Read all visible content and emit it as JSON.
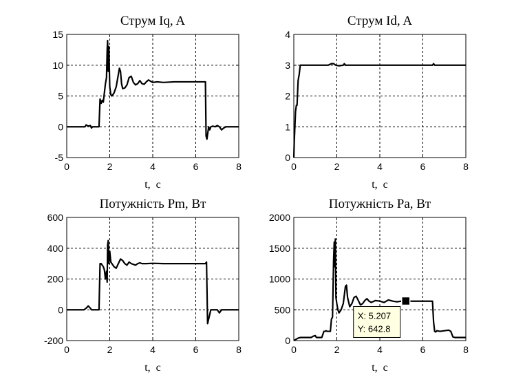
{
  "figure": {
    "background": "#ffffff",
    "line_color": "#000000",
    "grid_color": "#000000"
  },
  "chart_data": [
    {
      "type": "line",
      "title": "Струм Iq, A",
      "xlabel": "t,  c",
      "ylabel": "",
      "xlim": [
        0,
        8
      ],
      "ylim": [
        -5,
        15
      ],
      "xticks": [
        "0",
        "2",
        "4",
        "6",
        "8"
      ],
      "yticks": [
        "-5",
        "0",
        "5",
        "10",
        "15"
      ],
      "grid": true,
      "x": [
        0,
        0.85,
        0.9,
        1.0,
        1.1,
        1.15,
        1.2,
        1.3,
        1.5,
        1.55,
        1.6,
        1.65,
        1.7,
        1.75,
        1.8,
        1.85,
        1.88,
        1.9,
        1.93,
        1.96,
        2.0,
        2.05,
        2.1,
        2.2,
        2.3,
        2.4,
        2.45,
        2.5,
        2.55,
        2.6,
        2.7,
        2.8,
        2.9,
        3.0,
        3.1,
        3.2,
        3.3,
        3.4,
        3.5,
        3.6,
        3.7,
        3.8,
        3.9,
        4.0,
        4.2,
        4.5,
        5.0,
        5.5,
        6.0,
        6.45,
        6.48,
        6.52,
        6.56,
        6.6,
        6.65,
        6.7,
        6.8,
        6.9,
        7.0,
        7.1,
        7.2,
        7.3,
        7.4,
        7.5,
        7.7,
        8.0
      ],
      "series": [
        {
          "values": [
            0,
            0,
            0.3,
            0.1,
            0.2,
            -0.2,
            0,
            0,
            0,
            4.5,
            3.8,
            4.3,
            4.0,
            5.5,
            7.0,
            8.0,
            12.5,
            14.0,
            9.0,
            13.0,
            6.5,
            5.2,
            5.0,
            5.5,
            6.5,
            8.5,
            9.5,
            9.0,
            7.0,
            6.2,
            6.3,
            6.8,
            8.0,
            8.2,
            7.2,
            6.8,
            7.0,
            7.5,
            7.0,
            6.9,
            7.3,
            7.6,
            7.4,
            7.2,
            7.3,
            7.2,
            7.3,
            7.3,
            7.3,
            7.3,
            -1.5,
            -2.0,
            -1.0,
            0,
            -0.5,
            0,
            0.1,
            0,
            0.2,
            0,
            -0.5,
            -0.2,
            0,
            0,
            0,
            0
          ]
        }
      ]
    },
    {
      "type": "line",
      "title": "Струм Id, A",
      "xlabel": "t,  c",
      "ylabel": "",
      "xlim": [
        0,
        8
      ],
      "ylim": [
        0,
        4
      ],
      "xticks": [
        "0",
        "2",
        "4",
        "6",
        "8"
      ],
      "yticks": [
        "0",
        "1",
        "2",
        "3",
        "4"
      ],
      "grid": true,
      "x": [
        0,
        0.02,
        0.05,
        0.08,
        0.12,
        0.15,
        0.2,
        0.25,
        0.3,
        0.35,
        0.5,
        1.0,
        1.6,
        1.75,
        1.85,
        1.95,
        2.1,
        2.3,
        2.35,
        2.4,
        2.5,
        3.0,
        4.0,
        5.0,
        6.0,
        6.45,
        6.5,
        6.55,
        6.6,
        7.0,
        8.0
      ],
      "series": [
        {
          "values": [
            0,
            0.5,
            1.0,
            1.5,
            1.7,
            1.7,
            2.5,
            2.7,
            3.0,
            3.0,
            3.0,
            3.0,
            3.0,
            3.05,
            3.05,
            3.0,
            2.98,
            3.0,
            3.05,
            3.0,
            3.0,
            3.0,
            3.0,
            3.0,
            3.0,
            3.0,
            3.05,
            3.0,
            3.0,
            3.0,
            3.0
          ]
        }
      ]
    },
    {
      "type": "line",
      "title": "Потужність Pm, Вт",
      "xlabel": "t,  c",
      "ylabel": "",
      "xlim": [
        0,
        8
      ],
      "ylim": [
        -200,
        600
      ],
      "xticks": [
        "0",
        "2",
        "4",
        "6",
        "8"
      ],
      "yticks": [
        "-200",
        "0",
        "200",
        "400",
        "600"
      ],
      "grid": true,
      "x": [
        0,
        0.8,
        0.9,
        1.0,
        1.1,
        1.15,
        1.3,
        1.5,
        1.55,
        1.6,
        1.7,
        1.75,
        1.8,
        1.85,
        1.88,
        1.9,
        1.93,
        1.96,
        2.0,
        2.05,
        2.1,
        2.2,
        2.3,
        2.4,
        2.5,
        2.6,
        2.7,
        2.8,
        2.9,
        3.0,
        3.1,
        3.2,
        3.3,
        3.4,
        3.5,
        3.7,
        4.0,
        4.5,
        5.0,
        5.5,
        6.0,
        6.45,
        6.5,
        6.55,
        6.6,
        6.7,
        6.9,
        7.0,
        7.1,
        7.2,
        7.3,
        7.5,
        8.0
      ],
      "series": [
        {
          "values": [
            0,
            0,
            10,
            25,
            10,
            0,
            0,
            0,
            300,
            300,
            280,
            260,
            200,
            250,
            180,
            420,
            450,
            300,
            380,
            310,
            300,
            280,
            270,
            300,
            330,
            320,
            300,
            290,
            310,
            300,
            295,
            290,
            300,
            305,
            300,
            300,
            302,
            300,
            300,
            300,
            300,
            300,
            310,
            -90,
            -60,
            0,
            0,
            0,
            -20,
            0,
            0,
            0,
            0
          ]
        }
      ]
    },
    {
      "type": "line",
      "title": "Потужність Pa, Вт",
      "xlabel": "t,  c",
      "ylabel": "",
      "xlim": [
        0,
        8
      ],
      "ylim": [
        0,
        2000
      ],
      "xticks": [
        "0",
        "2",
        "4",
        "6",
        "8"
      ],
      "yticks": [
        "0",
        "500",
        "1000",
        "1500",
        "2000"
      ],
      "grid": true,
      "x": [
        0,
        0.1,
        0.2,
        0.3,
        0.8,
        0.9,
        1.0,
        1.05,
        1.3,
        1.4,
        1.45,
        1.5,
        1.55,
        1.6,
        1.7,
        1.75,
        1.8,
        1.85,
        1.88,
        1.9,
        1.93,
        1.96,
        2.0,
        2.05,
        2.1,
        2.2,
        2.3,
        2.4,
        2.45,
        2.5,
        2.6,
        2.7,
        2.8,
        2.9,
        3.0,
        3.1,
        3.2,
        3.3,
        3.4,
        3.5,
        3.6,
        3.8,
        4.0,
        4.2,
        4.4,
        4.6,
        4.8,
        5.0,
        5.207,
        5.5,
        6.0,
        6.45,
        6.5,
        6.55,
        6.6,
        6.65,
        6.8,
        7.0,
        7.2,
        7.3,
        7.4,
        7.5,
        8.0
      ],
      "series": [
        {
          "values": [
            0,
            20,
            40,
            50,
            50,
            70,
            80,
            50,
            50,
            150,
            150,
            160,
            150,
            150,
            150,
            350,
            380,
            1300,
            1600,
            1200,
            1650,
            700,
            600,
            500,
            450,
            500,
            600,
            880,
            900,
            700,
            550,
            600,
            700,
            720,
            650,
            580,
            600,
            650,
            680,
            640,
            620,
            650,
            640,
            620,
            660,
            640,
            630,
            640,
            642.8,
            640,
            640,
            640,
            300,
            150,
            140,
            160,
            150,
            160,
            170,
            150,
            60,
            50,
            50
          ]
        }
      ],
      "datatip": {
        "lines": [
          "X: 5.207",
          "Y: 642.8"
        ],
        "x": 5.207,
        "y": 642.8,
        "background": "#ffffe1"
      }
    }
  ]
}
